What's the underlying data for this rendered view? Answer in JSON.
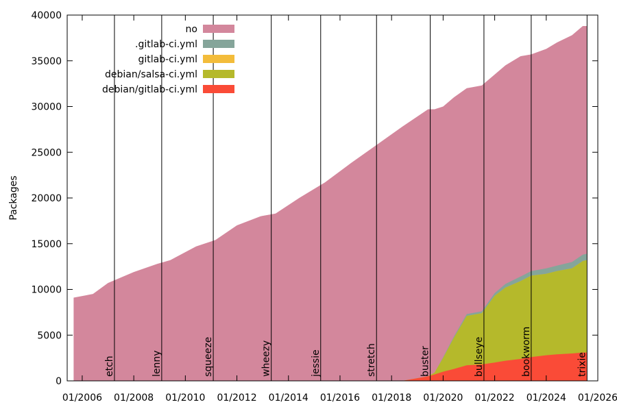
{
  "chart_data": {
    "type": "area",
    "ylabel": "Packages",
    "xlim": [
      "2005-06",
      "2026-01"
    ],
    "ylim": [
      0,
      40000
    ],
    "y_ticks": [
      "0",
      "5000",
      "10000",
      "15000",
      "20000",
      "25000",
      "30000",
      "35000",
      "40000"
    ],
    "x_ticks": [
      "01/2006",
      "01/2008",
      "01/2010",
      "01/2012",
      "01/2014",
      "01/2016",
      "01/2018",
      "01/2020",
      "01/2022",
      "01/2024",
      "01/2026"
    ],
    "stacked": true,
    "legend_position": "top-left",
    "grid": false,
    "series": [
      {
        "name": "no",
        "color": "#d3879c"
      },
      {
        "name": ".gitlab-ci.yml",
        "color": "#85a59a"
      },
      {
        "name": "gitlab-ci.yml",
        "color": "#f3bc3a"
      },
      {
        "name": "debian/salsa-ci.yml",
        "color": "#b5b92b"
      },
      {
        "name": "debian/gitlab-ci.yml",
        "color": "#fa4b37"
      }
    ],
    "x": [
      "2005-09",
      "2006-06",
      "2007-01",
      "2008-01",
      "2008-12",
      "2009-06",
      "2010-06",
      "2011-03",
      "2012-01",
      "2012-12",
      "2013-07",
      "2014-06",
      "2015-06",
      "2016-06",
      "2017-06",
      "2018-06",
      "2019-06",
      "2019-09",
      "2020-01",
      "2020-06",
      "2020-12",
      "2021-07",
      "2022-01",
      "2022-06",
      "2023-01",
      "2023-06",
      "2024-01",
      "2024-06",
      "2025-01",
      "2025-06",
      "2025-08"
    ],
    "totals": [
      9100,
      9500,
      10700,
      11900,
      12800,
      13200,
      14700,
      15400,
      17000,
      18000,
      18300,
      20000,
      21700,
      23800,
      25800,
      27800,
      29700,
      29700,
      30000,
      31000,
      32000,
      32300,
      33500,
      34500,
      35500,
      35700,
      36300,
      37000,
      37800,
      38800,
      38800
    ],
    "stack": {
      "debian/gitlab-ci.yml": [
        0,
        0,
        0,
        0,
        0,
        0,
        0,
        0,
        0,
        0,
        0,
        0,
        0,
        0,
        0,
        0,
        500,
        700,
        1000,
        1300,
        1700,
        1800,
        2000,
        2200,
        2400,
        2600,
        2800,
        2900,
        3000,
        3100,
        3100
      ],
      "debian/salsa-ci.yml": [
        0,
        0,
        0,
        0,
        0,
        0,
        0,
        0,
        0,
        0,
        0,
        0,
        0,
        0,
        0,
        0,
        0,
        200,
        1500,
        3400,
        5400,
        5600,
        7300,
        8000,
        8500,
        8900,
        8900,
        9100,
        9300,
        10000,
        10100
      ],
      "gitlab-ci.yml": [
        0,
        0,
        0,
        0,
        0,
        0,
        0,
        0,
        0,
        0,
        0,
        0,
        0,
        0,
        0,
        0,
        0,
        0,
        0,
        0,
        0,
        0,
        0,
        0,
        0,
        0,
        0,
        0,
        0,
        0,
        0
      ],
      ".gitlab-ci.yml": [
        0,
        0,
        0,
        0,
        0,
        0,
        0,
        0,
        0,
        0,
        0,
        0,
        0,
        0,
        0,
        0,
        0,
        0,
        100,
        150,
        200,
        200,
        300,
        400,
        500,
        500,
        600,
        600,
        700,
        700,
        700
      ]
    },
    "releases": [
      {
        "name": "etch",
        "date": "2007-04"
      },
      {
        "name": "lenny",
        "date": "2009-02"
      },
      {
        "name": "squeeze",
        "date": "2011-02"
      },
      {
        "name": "wheezy",
        "date": "2013-05"
      },
      {
        "name": "jessie",
        "date": "2015-04"
      },
      {
        "name": "stretch",
        "date": "2017-06"
      },
      {
        "name": "buster",
        "date": "2019-07"
      },
      {
        "name": "bullseye",
        "date": "2021-08"
      },
      {
        "name": "bookworm",
        "date": "2023-06"
      },
      {
        "name": "trixie",
        "date": "2025-08"
      }
    ]
  }
}
